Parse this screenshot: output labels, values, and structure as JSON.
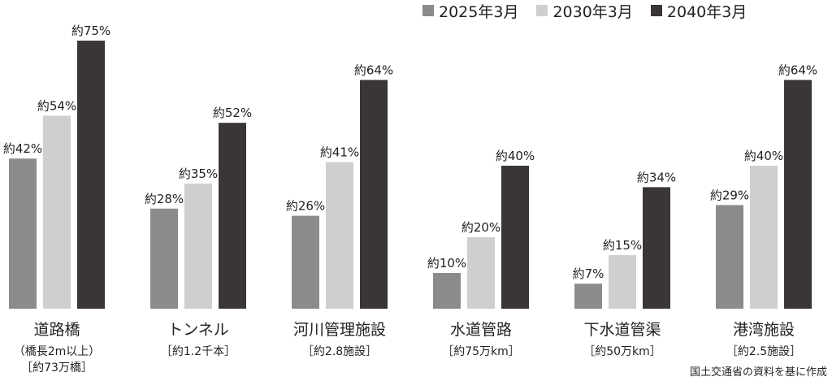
{
  "chart_data": {
    "type": "bar",
    "categories": [
      {
        "name": "道路橋",
        "notes": [
          "（橋長2m以上）",
          "［約73万橋］"
        ]
      },
      {
        "name": "トンネル",
        "notes": [
          "［約1.2千本］"
        ]
      },
      {
        "name": "河川管理施設",
        "notes": [
          "［約2.8施設］"
        ]
      },
      {
        "name": "水道管路",
        "notes": [
          "［約75万km］"
        ]
      },
      {
        "name": "下水道管渠",
        "notes": [
          "［約50万km］"
        ]
      },
      {
        "name": "港湾施設",
        "notes": [
          "［約2.5施設］"
        ]
      }
    ],
    "series": [
      {
        "name": "2025年3月",
        "color": "#8c8b8b",
        "values": [
          42,
          28,
          26,
          10,
          7,
          29
        ],
        "labels": [
          "約42%",
          "約28%",
          "約26%",
          "約10%",
          "約7%",
          "約29%"
        ]
      },
      {
        "name": "2030年3月",
        "color": "#cfcfcf",
        "values": [
          54,
          35,
          41,
          20,
          15,
          40
        ],
        "labels": [
          "約54%",
          "約35%",
          "約41%",
          "約20%",
          "約15%",
          "約40%"
        ]
      },
      {
        "name": "2040年3月",
        "color": "#3a3536",
        "values": [
          75,
          52,
          64,
          40,
          34,
          64
        ],
        "labels": [
          "約75%",
          "約52%",
          "約64%",
          "約40%",
          "約34%",
          "約64%"
        ]
      }
    ],
    "ylim": [
      0,
      100
    ],
    "grid": false,
    "legend_position": "top-right",
    "source": "国土交通省の資料を基に作成"
  }
}
